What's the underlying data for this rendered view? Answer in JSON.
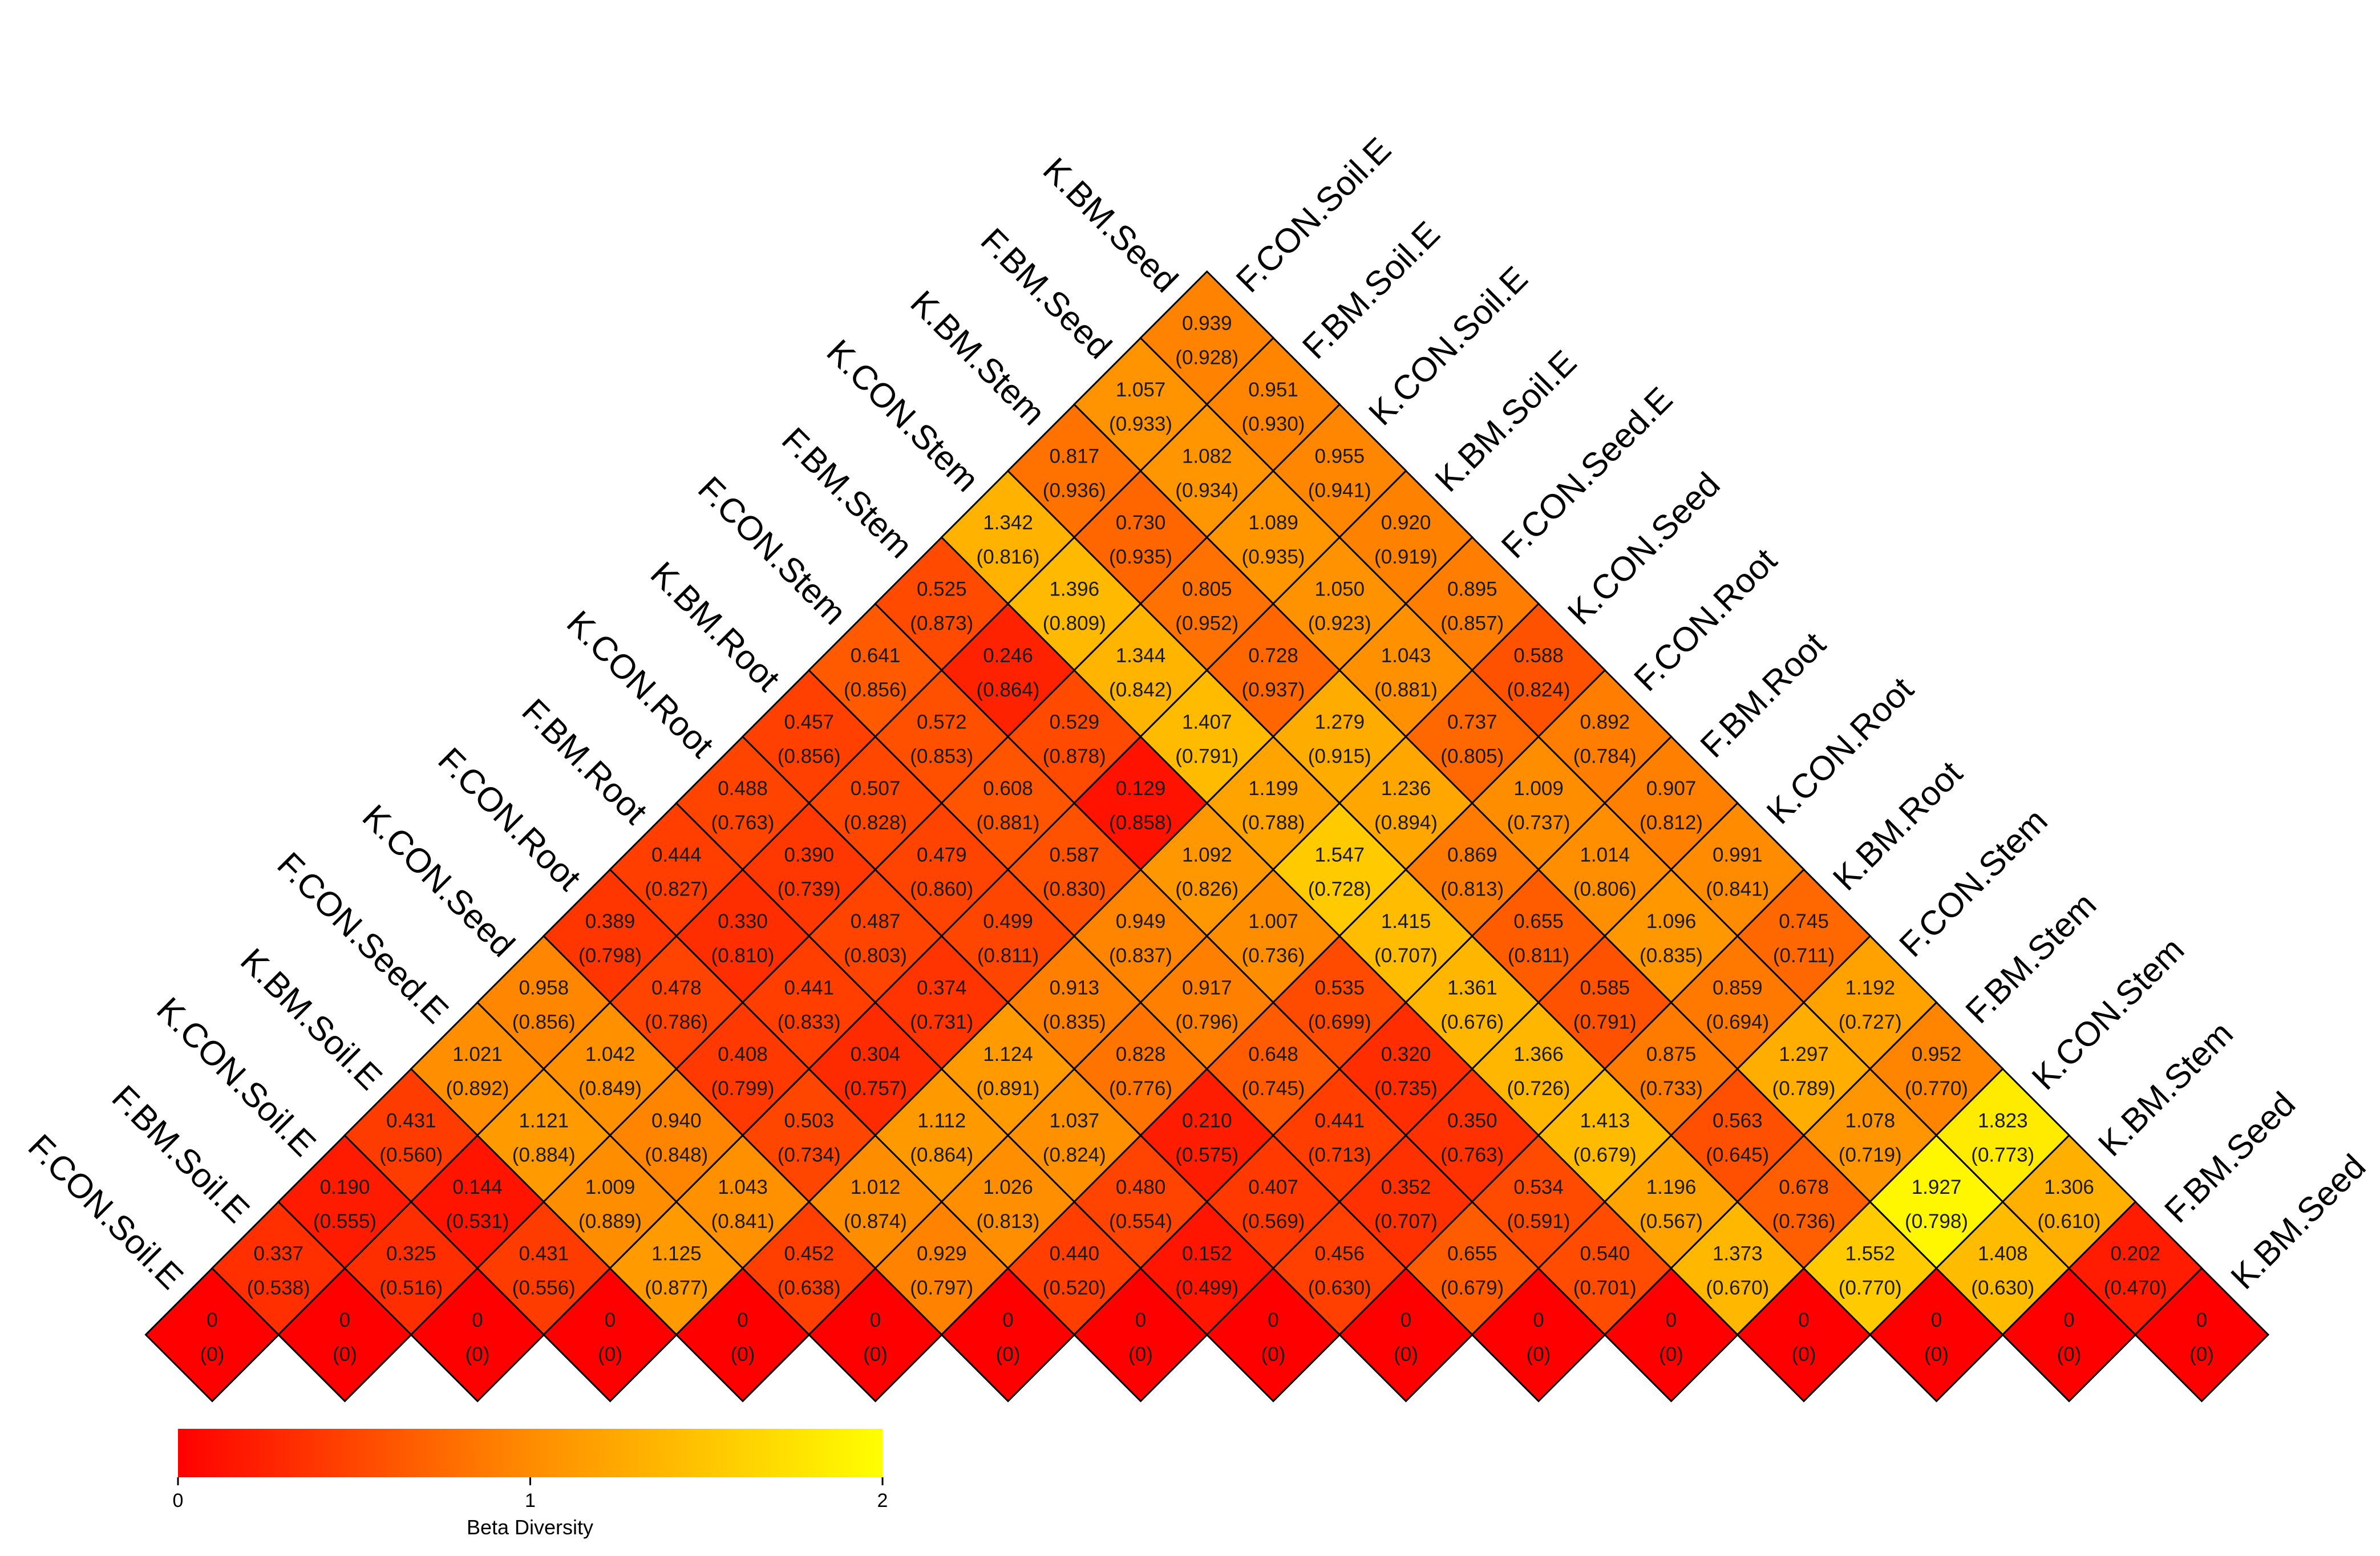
{
  "chart_data": {
    "type": "heatmap",
    "layout": "triangular lower-triangle rotated 45 degrees",
    "labels": [
      "F.CON.Soil.E",
      "F.BM.Soil.E",
      "K.CON.Soil.E",
      "K.BM.Soil.E",
      "F.CON.Seed.E",
      "K.CON.Seed",
      "F.CON.Root",
      "F.BM.Root",
      "K.CON.Root",
      "K.BM.Root",
      "F.CON.Stem",
      "F.BM.Stem",
      "K.CON.Stem",
      "K.BM.Stem",
      "F.BM.Seed",
      "K.BM.Seed"
    ],
    "value_matrix": [
      [
        0
      ],
      [
        0.337,
        0
      ],
      [
        0.19,
        0.325,
        0
      ],
      [
        0.431,
        0.144,
        0.431,
        0
      ],
      [
        1.021,
        1.121,
        1.009,
        1.125,
        0
      ],
      [
        0.958,
        1.042,
        0.94,
        1.043,
        0.452,
        0
      ],
      [
        0.389,
        0.478,
        0.408,
        0.503,
        1.012,
        0.929,
        0
      ],
      [
        0.444,
        0.33,
        0.441,
        0.304,
        1.112,
        1.026,
        0.44,
        0
      ],
      [
        0.488,
        0.39,
        0.487,
        0.374,
        1.124,
        1.037,
        0.48,
        0.152,
        0
      ],
      [
        0.457,
        0.507,
        0.479,
        0.499,
        0.913,
        0.828,
        0.21,
        0.407,
        0.456,
        0
      ],
      [
        0.641,
        0.572,
        0.608,
        0.587,
        0.949,
        0.917,
        0.648,
        0.441,
        0.352,
        0.655,
        0
      ],
      [
        0.525,
        0.246,
        0.529,
        0.129,
        1.092,
        1.007,
        0.535,
        0.32,
        0.35,
        0.534,
        0.54,
        0
      ],
      [
        1.342,
        1.396,
        1.344,
        1.407,
        1.199,
        1.547,
        1.415,
        1.361,
        1.366,
        1.413,
        1.196,
        1.373,
        0
      ],
      [
        0.817,
        0.73,
        0.805,
        0.728,
        1.279,
        1.236,
        0.869,
        0.655,
        0.585,
        0.875,
        0.563,
        0.678,
        1.552,
        0
      ],
      [
        1.057,
        1.082,
        1.089,
        1.05,
        1.043,
        0.737,
        1.009,
        1.014,
        1.096,
        0.859,
        1.297,
        1.078,
        1.927,
        1.408,
        0
      ],
      [
        0.939,
        0.951,
        0.955,
        0.92,
        0.895,
        0.588,
        0.892,
        0.907,
        0.991,
        0.745,
        1.192,
        0.952,
        1.823,
        1.306,
        0.202,
        0
      ]
    ],
    "paren_matrix": [
      [
        "0"
      ],
      [
        "0.538",
        "0"
      ],
      [
        "0.555",
        "0.516",
        "0"
      ],
      [
        "0.560",
        "0.531",
        "0.556",
        "0"
      ],
      [
        "0.892",
        "0.884",
        "0.889",
        "0.877",
        "0"
      ],
      [
        "0.856",
        "0.849",
        "0.848",
        "0.841",
        "0.638",
        "0"
      ],
      [
        "0.798",
        "0.786",
        "0.799",
        "0.734",
        "0.874",
        "0.797",
        "0"
      ],
      [
        "0.827",
        "0.810",
        "0.833",
        "0.757",
        "0.864",
        "0.813",
        "0.520",
        "0"
      ],
      [
        "0.763",
        "0.739",
        "0.803",
        "0.731",
        "0.891",
        "0.824",
        "0.554",
        "0.499",
        "0"
      ],
      [
        "0.856",
        "0.828",
        "0.860",
        "0.811",
        "0.835",
        "0.776",
        "0.575",
        "0.569",
        "0.630",
        "0"
      ],
      [
        "0.856",
        "0.853",
        "0.881",
        "0.830",
        "0.837",
        "0.796",
        "0.745",
        "0.713",
        "0.707",
        "0.679",
        "0"
      ],
      [
        "0.873",
        "0.864",
        "0.878",
        "0.858",
        "0.826",
        "0.736",
        "0.699",
        "0.735",
        "0.763",
        "0.591",
        "0.701",
        "0"
      ],
      [
        "0.816",
        "0.809",
        "0.842",
        "0.791",
        "0.788",
        "0.728",
        "0.707",
        "0.676",
        "0.726",
        "0.679",
        "0.567",
        "0.670",
        "0"
      ],
      [
        "0.936",
        "0.935",
        "0.952",
        "0.937",
        "0.915",
        "0.894",
        "0.813",
        "0.811",
        "0.791",
        "0.733",
        "0.645",
        "0.736",
        "0.770",
        "0"
      ],
      [
        "0.933",
        "0.934",
        "0.935",
        "0.923",
        "0.881",
        "0.805",
        "0.737",
        "0.806",
        "0.835",
        "0.694",
        "0.789",
        "0.719",
        "0.798",
        "0.630",
        "0"
      ],
      [
        "0.928",
        "0.930",
        "0.941",
        "0.919",
        "0.857",
        "0.824",
        "0.784",
        "0.812",
        "0.841",
        "0.711",
        "0.727",
        "0.770",
        "0.773",
        "0.610",
        "0.470",
        "0"
      ]
    ],
    "color_scale": {
      "min": 0,
      "max": 2,
      "colors": [
        "#ff0000",
        "#ff8c00",
        "#ffff00"
      ],
      "ticks": [
        "0",
        "1",
        "2"
      ],
      "title": "Beta Diversity"
    },
    "border_color": "#000000"
  }
}
